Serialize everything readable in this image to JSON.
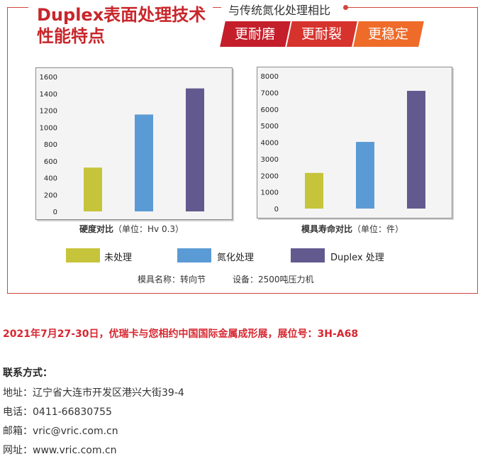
{
  "header": {
    "title_line1": "Duplex表面处理技术",
    "title_line2": "性能特点",
    "subtitle": "与传统氮化处理相比",
    "tabs": [
      {
        "label": "更耐磨",
        "color": "#c41e2a"
      },
      {
        "label": "更耐裂",
        "color": "#d6332d"
      },
      {
        "label": "更稳定",
        "color": "#ee6b2a"
      }
    ]
  },
  "chart_data": [
    {
      "type": "bar",
      "title": "硬度对比",
      "unit_note": "（单位：Hv 0.3）",
      "categories": [
        "未处理",
        "氮化处理",
        "Duplex 处理"
      ],
      "values": [
        520,
        1150,
        1460
      ],
      "ylim": [
        0,
        1600
      ],
      "yticks": [
        0,
        200,
        400,
        600,
        800,
        1000,
        1200,
        1400,
        1600
      ],
      "grid": false
    },
    {
      "type": "bar",
      "title": "模具寿命对比",
      "unit_note": "（单位：件）",
      "categories": [
        "未处理",
        "氮化处理",
        "Duplex 处理"
      ],
      "values": [
        2150,
        4020,
        7100
      ],
      "ylim": [
        0,
        8000
      ],
      "yticks": [
        0,
        1000,
        2000,
        3000,
        4000,
        5000,
        6000,
        7000,
        8000
      ],
      "grid": false
    }
  ],
  "legend": [
    {
      "label": "未处理",
      "color": "#c6c43a"
    },
    {
      "label": "氮化处理",
      "color": "#5b9bd5"
    },
    {
      "label": "Duplex 处理",
      "color": "#625a8f"
    }
  ],
  "footnote": {
    "mold_name": "模具名称：转向节",
    "equipment": "设备：2500吨压力机"
  },
  "notice": "2021年7月27-30日，优瑞卡与您相约中国国际金属成形展，展位号：3H-A68",
  "contact": {
    "title": "联系方式：",
    "address": "地址：辽宁省大连市开发区港兴大街39-4",
    "phone": "电话：0411-66830755",
    "email": "邮箱：vric@vric.com.cn",
    "website": "网址：www.vric.com.cn"
  }
}
